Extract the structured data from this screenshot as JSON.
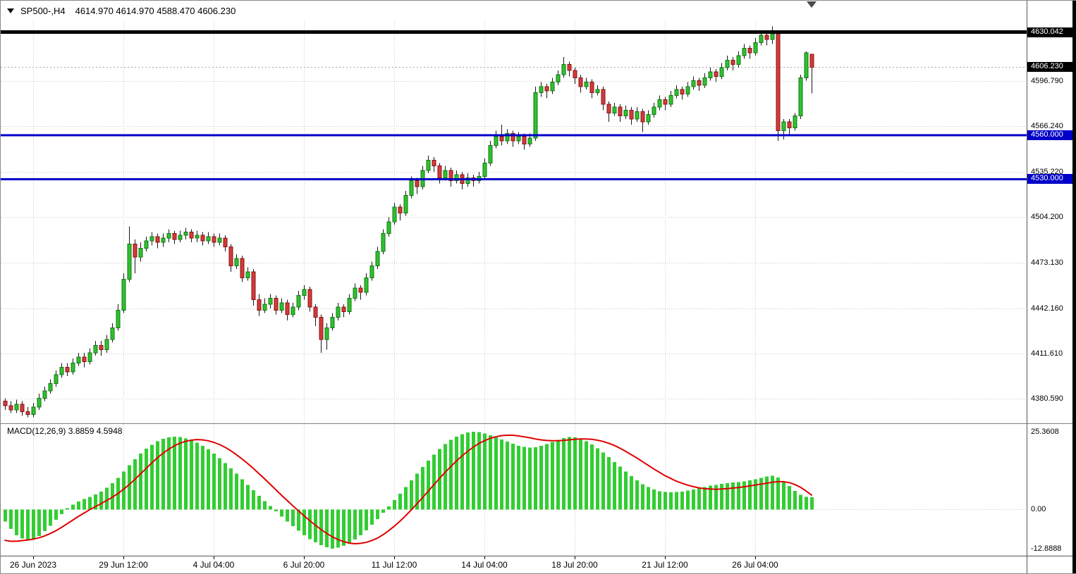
{
  "title": {
    "symbol_period": "SP500-,H4",
    "ohlc": "4614.970 4614.970 4588.470 4606.230"
  },
  "chart_data": {
    "type": "candlestick",
    "symbol": "SP500-",
    "timeframe": "H4",
    "current_bar": {
      "open": "4614.970",
      "high": "4614.970",
      "low": "4588.470",
      "close": "4606.230"
    },
    "colors": {
      "bull": "#2FC12F",
      "bull_border": "#117711",
      "bear": "#D23B3B",
      "bear_border": "#8A1111",
      "wick": "#1a1a1a",
      "macd_hist": "#32CD32",
      "macd_signal": "#E00000",
      "grid": "#C8C8C8",
      "hline_blue": "#0000C8",
      "hline_black": "#000000"
    },
    "price_axis": {
      "ylim": [
        4364,
        4638
      ],
      "grid_labels": [
        "4596.790",
        "4566.240",
        "4535.220",
        "4504.200",
        "4473.130",
        "4442.160",
        "4411.610",
        "4380.590"
      ],
      "badges": [
        {
          "label": "4630.042",
          "color": "#000000"
        },
        {
          "label": "4606.230",
          "color": "#000000"
        },
        {
          "label": "4560.000",
          "color": "#0000C8"
        },
        {
          "label": "4530.000",
          "color": "#0000C8"
        }
      ]
    },
    "hlines": [
      {
        "price": 4630.042,
        "color": "#000000",
        "width": 5,
        "style": "solid"
      },
      {
        "price": 4606.23,
        "color": "#A8A8A8",
        "width": 1,
        "style": "dotted"
      },
      {
        "price": 4560.0,
        "color": "#0000C8",
        "width": 3,
        "style": "solid"
      },
      {
        "price": 4530.0,
        "color": "#0000C8",
        "width": 3,
        "style": "solid"
      }
    ],
    "x_axis": {
      "ticks": [
        {
          "index": 5,
          "label": "26 Jun 2023"
        },
        {
          "index": 21,
          "label": "29 Jun 12:00"
        },
        {
          "index": 37,
          "label": "4 Jul 04:00"
        },
        {
          "index": 53,
          "label": "6 Jul 20:00"
        },
        {
          "index": 69,
          "label": "11 Jul 12:00"
        },
        {
          "index": 85,
          "label": "14 Jul 04:00"
        },
        {
          "index": 101,
          "label": "18 Jul 20:00"
        },
        {
          "index": 117,
          "label": "21 Jul 12:00"
        },
        {
          "index": 133,
          "label": "26 Jul 04:00"
        }
      ]
    },
    "candles": [
      [
        4379,
        4381,
        4373,
        4376
      ],
      [
        4376,
        4379,
        4371,
        4373
      ],
      [
        4373,
        4380,
        4371,
        4377
      ],
      [
        4377,
        4379,
        4369,
        4372
      ],
      [
        4372,
        4375,
        4368,
        4370
      ],
      [
        4370,
        4378,
        4368,
        4375
      ],
      [
        4375,
        4384,
        4373,
        4381
      ],
      [
        4381,
        4389,
        4379,
        4386
      ],
      [
        4386,
        4394,
        4384,
        4391
      ],
      [
        4391,
        4400,
        4389,
        4397
      ],
      [
        4397,
        4405,
        4395,
        4402
      ],
      [
        4402,
        4405,
        4396,
        4399
      ],
      [
        4399,
        4408,
        4397,
        4405
      ],
      [
        4405,
        4412,
        4403,
        4409
      ],
      [
        4409,
        4412,
        4402,
        4406
      ],
      [
        4406,
        4415,
        4404,
        4412
      ],
      [
        4412,
        4420,
        4410,
        4417
      ],
      [
        4417,
        4420,
        4410,
        4414
      ],
      [
        4414,
        4424,
        4412,
        4421
      ],
      [
        4421,
        4432,
        4419,
        4429
      ],
      [
        4429,
        4445,
        4427,
        4441
      ],
      [
        4441,
        4466,
        4439,
        4462
      ],
      [
        4462,
        4498,
        4460,
        4486
      ],
      [
        4486,
        4489,
        4466,
        4477
      ],
      [
        4477,
        4487,
        4474,
        4483
      ],
      [
        4483,
        4491,
        4481,
        4488
      ],
      [
        4488,
        4494,
        4485,
        4491
      ],
      [
        4491,
        4493,
        4483,
        4487
      ],
      [
        4487,
        4493,
        4484,
        4490
      ],
      [
        4490,
        4496,
        4487,
        4493
      ],
      [
        4493,
        4495,
        4486,
        4489
      ],
      [
        4489,
        4495,
        4487,
        4492
      ],
      [
        4492,
        4497,
        4489,
        4494
      ],
      [
        4494,
        4496,
        4487,
        4490
      ],
      [
        4490,
        4495,
        4487,
        4492
      ],
      [
        4492,
        4494,
        4485,
        4488
      ],
      [
        4488,
        4494,
        4486,
        4491
      ],
      [
        4491,
        4493,
        4484,
        4487
      ],
      [
        4487,
        4493,
        4485,
        4490
      ],
      [
        4490,
        4492,
        4481,
        4484
      ],
      [
        4484,
        4486,
        4467,
        4471
      ],
      [
        4471,
        4479,
        4469,
        4476
      ],
      [
        4476,
        4478,
        4460,
        4463
      ],
      [
        4463,
        4470,
        4461,
        4467
      ],
      [
        4467,
        4469,
        4444,
        4448
      ],
      [
        4448,
        4452,
        4437,
        4441
      ],
      [
        4441,
        4449,
        4439,
        4445
      ],
      [
        4445,
        4452,
        4442,
        4449
      ],
      [
        4449,
        4451,
        4438,
        4441
      ],
      [
        4441,
        4449,
        4439,
        4446
      ],
      [
        4446,
        4448,
        4434,
        4438
      ],
      [
        4438,
        4446,
        4436,
        4443
      ],
      [
        4443,
        4454,
        4441,
        4451
      ],
      [
        4451,
        4458,
        4448,
        4455
      ],
      [
        4455,
        4457,
        4440,
        4443
      ],
      [
        4443,
        4445,
        4430,
        4436
      ],
      [
        4436,
        4438,
        4412,
        4421
      ],
      [
        4421,
        4432,
        4414,
        4429
      ],
      [
        4429,
        4439,
        4427,
        4436
      ],
      [
        4436,
        4446,
        4434,
        4443
      ],
      [
        4443,
        4445,
        4436,
        4440
      ],
      [
        4440,
        4452,
        4438,
        4449
      ],
      [
        4449,
        4459,
        4447,
        4456
      ],
      [
        4456,
        4458,
        4448,
        4453
      ],
      [
        4453,
        4466,
        4451,
        4463
      ],
      [
        4463,
        4474,
        4461,
        4471
      ],
      [
        4471,
        4484,
        4469,
        4481
      ],
      [
        4481,
        4496,
        4479,
        4493
      ],
      [
        4493,
        4504,
        4491,
        4501
      ],
      [
        4501,
        4514,
        4499,
        4511
      ],
      [
        4511,
        4513,
        4502,
        4507
      ],
      [
        4507,
        4522,
        4505,
        4519
      ],
      [
        4519,
        4532,
        4517,
        4529
      ],
      [
        4529,
        4531,
        4520,
        4525
      ],
      [
        4525,
        4539,
        4523,
        4536
      ],
      [
        4536,
        4546,
        4534,
        4543
      ],
      [
        4543,
        4545,
        4535,
        4539
      ],
      [
        4539,
        4541,
        4527,
        4531
      ],
      [
        4531,
        4539,
        4529,
        4536
      ],
      [
        4536,
        4538,
        4525,
        4529
      ],
      [
        4529,
        4536,
        4527,
        4533
      ],
      [
        4533,
        4535,
        4523,
        4527
      ],
      [
        4527,
        4534,
        4525,
        4531
      ],
      [
        4531,
        4533,
        4525,
        4529
      ],
      [
        4529,
        4535,
        4527,
        4532
      ],
      [
        4532,
        4544,
        4530,
        4541
      ],
      [
        4541,
        4556,
        4539,
        4553
      ],
      [
        4553,
        4563,
        4551,
        4559
      ],
      [
        4559,
        4567,
        4553,
        4556
      ],
      [
        4556,
        4564,
        4554,
        4561
      ],
      [
        4561,
        4563,
        4552,
        4556
      ],
      [
        4556,
        4562,
        4554,
        4559
      ],
      [
        4559,
        4561,
        4550,
        4554
      ],
      [
        4554,
        4561,
        4552,
        4558
      ],
      [
        4558,
        4593,
        4556,
        4589
      ],
      [
        4589,
        4596,
        4586,
        4593
      ],
      [
        4593,
        4595,
        4585,
        4590
      ],
      [
        4590,
        4599,
        4588,
        4596
      ],
      [
        4596,
        4604,
        4594,
        4601
      ],
      [
        4601,
        4613,
        4599,
        4608
      ],
      [
        4608,
        4610,
        4600,
        4604
      ],
      [
        4604,
        4606,
        4595,
        4599
      ],
      [
        4599,
        4601,
        4589,
        4593
      ],
      [
        4593,
        4599,
        4591,
        4596
      ],
      [
        4596,
        4598,
        4585,
        4589
      ],
      [
        4589,
        4594,
        4587,
        4591
      ],
      [
        4591,
        4593,
        4577,
        4581
      ],
      [
        4581,
        4583,
        4569,
        4575
      ],
      [
        4575,
        4582,
        4573,
        4579
      ],
      [
        4579,
        4581,
        4569,
        4573
      ],
      [
        4573,
        4580,
        4571,
        4577
      ],
      [
        4577,
        4579,
        4567,
        4571
      ],
      [
        4571,
        4579,
        4569,
        4576
      ],
      [
        4576,
        4578,
        4562,
        4569
      ],
      [
        4569,
        4577,
        4567,
        4574
      ],
      [
        4574,
        4582,
        4572,
        4579
      ],
      [
        4579,
        4587,
        4577,
        4584
      ],
      [
        4584,
        4586,
        4577,
        4581
      ],
      [
        4581,
        4590,
        4579,
        4587
      ],
      [
        4587,
        4594,
        4585,
        4591
      ],
      [
        4591,
        4593,
        4584,
        4588
      ],
      [
        4588,
        4596,
        4586,
        4593
      ],
      [
        4593,
        4600,
        4591,
        4597
      ],
      [
        4597,
        4599,
        4590,
        4594
      ],
      [
        4594,
        4602,
        4592,
        4599
      ],
      [
        4599,
        4606,
        4597,
        4603
      ],
      [
        4603,
        4605,
        4596,
        4600
      ],
      [
        4600,
        4609,
        4598,
        4606
      ],
      [
        4606,
        4614,
        4604,
        4611
      ],
      [
        4611,
        4613,
        4604,
        4608
      ],
      [
        4608,
        4617,
        4606,
        4614
      ],
      [
        4614,
        4622,
        4612,
        4619
      ],
      [
        4619,
        4621,
        4612,
        4616
      ],
      [
        4616,
        4626,
        4614,
        4623
      ],
      [
        4623,
        4631,
        4621,
        4628
      ],
      [
        4628,
        4630,
        4621,
        4625
      ],
      [
        4625,
        4634,
        4622,
        4629
      ],
      [
        4629,
        4630,
        4556,
        4563
      ],
      [
        4563,
        4571,
        4557,
        4569
      ],
      [
        4569,
        4571,
        4560,
        4565
      ],
      [
        4565,
        4575,
        4563,
        4573
      ],
      [
        4573,
        4601,
        4571,
        4599
      ],
      [
        4599,
        4617,
        4597,
        4616
      ],
      [
        4614.97,
        4614.97,
        4588.47,
        4606.23
      ]
    ],
    "macd": {
      "label": "MACD(12,26,9) 3.8859 4.5948",
      "histogram_value": "3.8859",
      "signal_value": "4.5948",
      "axis_labels": [
        "25.3608",
        "0.00",
        "-12.8888"
      ],
      "ylim": [
        -15,
        27.9
      ],
      "histogram": [
        -4,
        -6.5,
        -8.5,
        -9.6,
        -10.2,
        -9.8,
        -8.8,
        -7.2,
        -5.4,
        -3.5,
        -1.6,
        0.3,
        1.5,
        2.5,
        3.3,
        4,
        4.8,
        5.8,
        7,
        8.5,
        10.3,
        12.3,
        14.4,
        16.4,
        18.2,
        19.8,
        21.1,
        22.2,
        23,
        23.5,
        23.7,
        23.6,
        23.2,
        22.6,
        21.8,
        20.8,
        19.6,
        18.2,
        16.7,
        15.1,
        13.4,
        11.6,
        9.8,
        8,
        6.2,
        4.4,
        2.7,
        1,
        -0.7,
        -2.4,
        -4,
        -5.6,
        -7.1,
        -8.5,
        -9.8,
        -10.9,
        -11.8,
        -12.5,
        -12.9,
        -12.6,
        -12,
        -11.1,
        -9.9,
        -8.5,
        -6.9,
        -5.1,
        -3.2,
        -1.2,
        0.9,
        3,
        5.1,
        7.2,
        9.4,
        11.6,
        13.8,
        15.9,
        17.9,
        19.7,
        21.3,
        22.7,
        23.8,
        24.6,
        25.1,
        25.36,
        25.2,
        24.8,
        24.2,
        23.5,
        22.8,
        22.1,
        21.4,
        20.8,
        20.4,
        20.2,
        20.3,
        20.7,
        21.3,
        22,
        22.7,
        23.3,
        23.6,
        23.5,
        23,
        22.2,
        21.2,
        20,
        18.6,
        17.1,
        15.5,
        13.9,
        12.3,
        10.8,
        9.4,
        8.2,
        7.2,
        6.4,
        5.9,
        5.6,
        5.5,
        5.6,
        5.8,
        6.1,
        6.5,
        6.9,
        7.3,
        7.7,
        8,
        8.3,
        8.5,
        8.7,
        8.9,
        9.1,
        9.4,
        9.8,
        10.3,
        10.7,
        10.9,
        10.4,
        9.2,
        7.6,
        6,
        4.7,
        4,
        3.8859
      ],
      "signal": [
        -10.2,
        -10.5,
        -10.5,
        -10.3,
        -10.1,
        -9.8,
        -9.4,
        -8.8,
        -8,
        -7.1,
        -6,
        -4.8,
        -3.6,
        -2.4,
        -1.3,
        -0.2,
        0.8,
        1.8,
        2.8,
        3.9,
        5.1,
        6.5,
        8,
        9.7,
        11.5,
        13.3,
        15.1,
        16.8,
        18.3,
        19.6,
        20.7,
        21.6,
        22.2,
        22.6,
        22.8,
        22.7,
        22.4,
        21.9,
        21.2,
        20.3,
        19.2,
        17.9,
        16.5,
        15,
        13.4,
        11.7,
        10,
        8.2,
        6.4,
        4.6,
        2.9,
        1.2,
        -0.5,
        -2.1,
        -3.7,
        -5.2,
        -6.6,
        -7.9,
        -9,
        -9.9,
        -10.6,
        -11.1,
        -11.3,
        -11.2,
        -10.9,
        -10.3,
        -9.5,
        -8.4,
        -7.1,
        -5.6,
        -4,
        -2.2,
        -0.3,
        1.7,
        3.7,
        5.8,
        7.9,
        10,
        12,
        13.9,
        15.7,
        17.4,
        18.9,
        20.3,
        21.5,
        22.4,
        23.2,
        23.7,
        24.1,
        24.2,
        24.2,
        24,
        23.7,
        23.4,
        23,
        22.7,
        22.5,
        22.4,
        22.4,
        22.5,
        22.7,
        22.9,
        23,
        23,
        22.9,
        22.6,
        22.2,
        21.6,
        20.9,
        20,
        19,
        17.9,
        16.8,
        15.6,
        14.4,
        13.2,
        12.1,
        11,
        10.1,
        9.2,
        8.5,
        7.9,
        7.4,
        7,
        6.7,
        6.6,
        6.5,
        6.6,
        6.7,
        6.9,
        7.1,
        7.3,
        7.6,
        7.9,
        8.2,
        8.5,
        8.8,
        9,
        9,
        8.7,
        8.1,
        7.2,
        6,
        4.5948
      ]
    }
  }
}
